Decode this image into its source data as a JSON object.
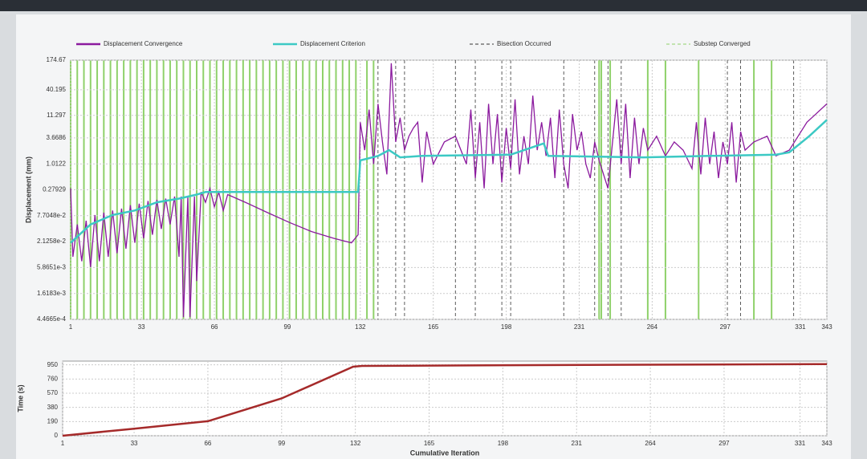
{
  "chart_data": [
    {
      "type": "line",
      "y_scale": "log",
      "y_label": "Displacement (mm)",
      "xlim": [
        1,
        343
      ],
      "xticks": [
        1,
        33,
        66,
        99,
        132,
        165,
        198,
        231,
        264,
        297,
        331,
        343
      ],
      "ylim": [
        0.00044665,
        174.67
      ],
      "yticks": [
        {
          "value": 0.00044665,
          "label": "4.4665e-4"
        },
        {
          "value": 0.0016183,
          "label": "1.6183e-3"
        },
        {
          "value": 0.0058651,
          "label": "5.8651e-3"
        },
        {
          "value": 0.021258,
          "label": "2.1258e-2"
        },
        {
          "value": 0.077048,
          "label": "7.7048e-2"
        },
        0.27929,
        1.0122,
        3.6686,
        11.297,
        40.195,
        174.67
      ],
      "grid": true,
      "series": [
        {
          "name": "Displacement Convergence",
          "color": "#8b1a9e",
          "x": [
            1,
            2,
            4,
            6,
            8,
            10,
            12,
            14,
            16,
            18,
            20,
            22,
            24,
            26,
            28,
            30,
            32,
            34,
            36,
            38,
            40,
            42,
            44,
            46,
            48,
            50,
            51,
            52,
            54,
            55,
            57,
            58,
            60,
            62,
            64,
            66,
            68,
            70,
            72,
            74,
            80,
            90,
            100,
            110,
            120,
            128,
            131,
            132,
            134,
            136,
            138,
            140,
            142,
            144,
            146,
            148,
            150,
            152,
            154,
            156,
            158,
            160,
            162,
            165,
            170,
            175,
            180,
            182,
            184,
            186,
            188,
            190,
            192,
            194,
            196,
            198,
            200,
            202,
            204,
            206,
            208,
            210,
            212,
            214,
            216,
            218,
            220,
            222,
            224,
            226,
            228,
            230,
            232,
            234,
            236,
            238,
            240,
            244,
            248,
            250,
            252,
            254,
            256,
            258,
            260,
            262,
            266,
            270,
            274,
            278,
            282,
            284,
            286,
            288,
            290,
            292,
            294,
            296,
            298,
            300,
            302,
            304,
            306,
            310,
            316,
            320,
            326,
            330,
            334,
            338,
            343
          ],
          "values": [
            0.3,
            0.01,
            0.05,
            0.008,
            0.06,
            0.006,
            0.08,
            0.008,
            0.09,
            0.01,
            0.1,
            0.012,
            0.11,
            0.015,
            0.13,
            0.02,
            0.14,
            0.025,
            0.16,
            0.03,
            0.17,
            0.04,
            0.18,
            0.05,
            0.2,
            0.01,
            0.2,
            0.0005,
            0.2,
            0.0005,
            0.2,
            0.003,
            0.25,
            0.15,
            0.3,
            0.12,
            0.25,
            0.1,
            0.22,
            0.2,
            0.15,
            0.09,
            0.055,
            0.035,
            0.025,
            0.02,
            0.03,
            8,
            2,
            15,
            1,
            20,
            3,
            0.6,
            150,
            3,
            10,
            2,
            4,
            6,
            8,
            0.4,
            5,
            1,
            3,
            4,
            1,
            15,
            0.5,
            8,
            0.3,
            20,
            1,
            12,
            0.4,
            6,
            0.8,
            25,
            0.6,
            4,
            1,
            30,
            2,
            8,
            1.5,
            10,
            0.5,
            15,
            1,
            0.3,
            12,
            2,
            5,
            1,
            0.5,
            3,
            1.2,
            0.3,
            25,
            1,
            20,
            0.5,
            10,
            1,
            6,
            2,
            4,
            1.5,
            3,
            2,
            0.8,
            8,
            0.6,
            10,
            1,
            5,
            0.5,
            3,
            1,
            8,
            0.4,
            5,
            2,
            3,
            4,
            1.5,
            2,
            4,
            8,
            12,
            20
          ]
        },
        {
          "name": "Displacement Criterion",
          "color": "#3cc9c4",
          "x": [
            1,
            10,
            20,
            30,
            40,
            50,
            58,
            62,
            131,
            132,
            140,
            145,
            150,
            160,
            200,
            215,
            217,
            260,
            290,
            320,
            326,
            335,
            343
          ],
          "values": [
            0.02,
            0.05,
            0.08,
            0.1,
            0.15,
            0.18,
            0.22,
            0.25,
            0.25,
            1.2,
            1.5,
            2,
            1.4,
            1.5,
            1.6,
            2.8,
            1.5,
            1.4,
            1.5,
            1.6,
            1.8,
            4,
            9
          ]
        }
      ],
      "events": [
        {
          "name": "Bisection Occurred",
          "color": "#333333",
          "x": [
            138,
            140,
            148,
            152,
            175,
            184,
            196,
            200,
            224,
            238,
            244,
            250,
            262,
            270,
            298,
            304,
            318,
            328
          ]
        },
        {
          "name": "Substep Converged",
          "color": "#8fd16a",
          "x": [
            1,
            4,
            7,
            10,
            13,
            16,
            19,
            22,
            25,
            28,
            31,
            34,
            37,
            40,
            43,
            46,
            49,
            52,
            55,
            58,
            61,
            64,
            67,
            70,
            73,
            76,
            79,
            82,
            85,
            88,
            91,
            94,
            97,
            100,
            103,
            106,
            109,
            112,
            115,
            118,
            121,
            124,
            127,
            130,
            135,
            138,
            240,
            241,
            245,
            262,
            270,
            285,
            310,
            318
          ]
        }
      ]
    },
    {
      "type": "line",
      "y_label": "Time (s)",
      "x_label": "Cumulative Iteration",
      "xlim": [
        1,
        343
      ],
      "xticks": [
        1,
        33,
        66,
        99,
        132,
        165,
        198,
        231,
        264,
        297,
        331,
        343
      ],
      "ylim": [
        0,
        1000
      ],
      "yticks": [
        0,
        190,
        380,
        570,
        760,
        950
      ],
      "grid": true,
      "series": [
        {
          "name": "Time",
          "color": "#a52a2a",
          "x": [
            1,
            33,
            66,
            99,
            131,
            135,
            200,
            343
          ],
          "values": [
            0,
            95,
            195,
            500,
            925,
            935,
            945,
            960
          ]
        }
      ]
    }
  ]
}
